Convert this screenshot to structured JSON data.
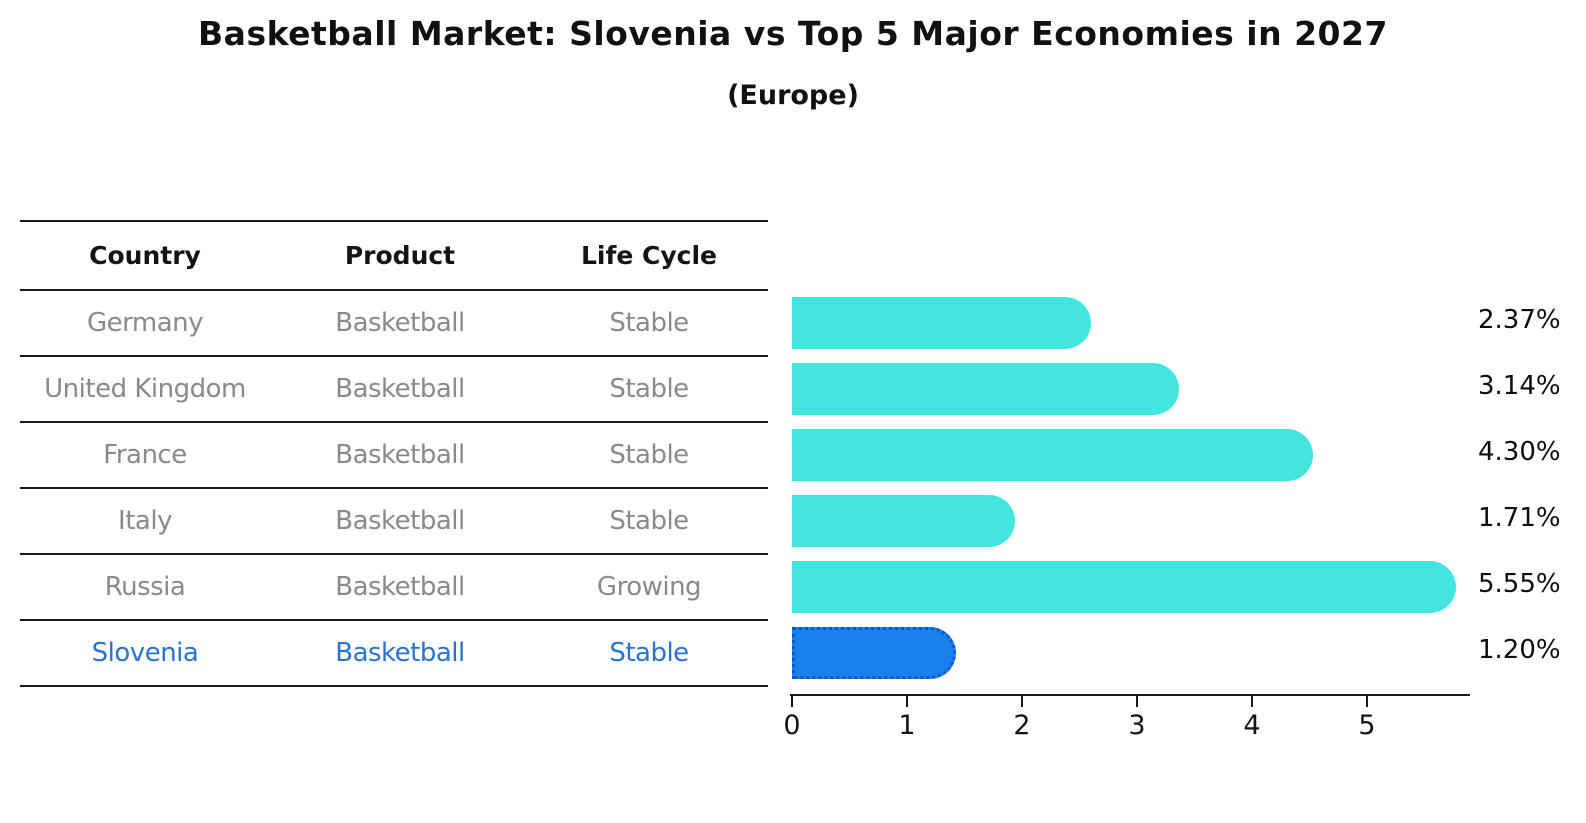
{
  "page": {
    "title": "Basketball Market: Slovenia vs Top 5 Major Economies in 2027",
    "subtitle": "(Europe)"
  },
  "table": {
    "headers": [
      "Country",
      "Product",
      "Life Cycle"
    ],
    "rows": [
      {
        "country": "Germany",
        "product": "Basketball",
        "life_cycle": "Stable",
        "highlight": false
      },
      {
        "country": "United Kingdom",
        "product": "Basketball",
        "life_cycle": "Stable",
        "highlight": false
      },
      {
        "country": "France",
        "product": "Basketball",
        "life_cycle": "Stable",
        "highlight": false
      },
      {
        "country": "Italy",
        "product": "Basketball",
        "life_cycle": "Stable",
        "highlight": false
      },
      {
        "country": "Russia",
        "product": "Basketball",
        "life_cycle": "Growing",
        "highlight": false
      },
      {
        "country": "Slovenia",
        "product": "Basketball",
        "life_cycle": "Stable",
        "highlight": true
      }
    ]
  },
  "chart_data": {
    "type": "bar",
    "orientation": "horizontal",
    "title": "Basketball Market: Slovenia vs Top 5 Major Economies in 2027",
    "subtitle": "(Europe)",
    "categories": [
      "Germany",
      "United Kingdom",
      "France",
      "Italy",
      "Russia",
      "Slovenia"
    ],
    "values": [
      2.37,
      3.14,
      4.3,
      1.71,
      5.55,
      1.2
    ],
    "value_labels": [
      "2.37%",
      "3.14%",
      "4.30%",
      "1.71%",
      "5.55%",
      "1.20%"
    ],
    "x_ticks": [
      "0",
      "1",
      "2",
      "3",
      "4",
      "5"
    ],
    "xlim": [
      0,
      5.9
    ],
    "grid": false,
    "legend": false,
    "bar_color": "#44E5DE",
    "highlight_color": "#1A80EE",
    "highlight_border_color": "#0d57c9",
    "highlight_index": 5
  }
}
